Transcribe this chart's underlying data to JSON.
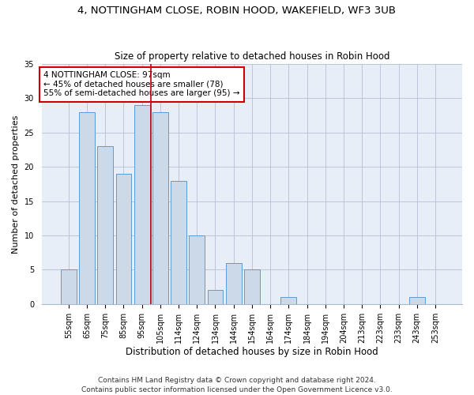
{
  "title": "4, NOTTINGHAM CLOSE, ROBIN HOOD, WAKEFIELD, WF3 3UB",
  "subtitle": "Size of property relative to detached houses in Robin Hood",
  "xlabel": "Distribution of detached houses by size in Robin Hood",
  "ylabel": "Number of detached properties",
  "categories": [
    "55sqm",
    "65sqm",
    "75sqm",
    "85sqm",
    "95sqm",
    "105sqm",
    "114sqm",
    "124sqm",
    "134sqm",
    "144sqm",
    "154sqm",
    "164sqm",
    "174sqm",
    "184sqm",
    "194sqm",
    "204sqm",
    "213sqm",
    "223sqm",
    "233sqm",
    "243sqm",
    "253sqm"
  ],
  "values": [
    5,
    28,
    23,
    19,
    29,
    28,
    18,
    10,
    2,
    6,
    5,
    0,
    1,
    0,
    0,
    0,
    0,
    0,
    0,
    1,
    0
  ],
  "bar_color": "#ccd9e8",
  "bar_edge_color": "#5b9bd5",
  "vline_x": 4.5,
  "vline_color": "#cc0000",
  "annotation_text": "4 NOTTINGHAM CLOSE: 97sqm\n← 45% of detached houses are smaller (78)\n55% of semi-detached houses are larger (95) →",
  "annotation_box_color": "#cc0000",
  "background_color": "#e8eef8",
  "footer": "Contains HM Land Registry data © Crown copyright and database right 2024.\nContains public sector information licensed under the Open Government Licence v3.0.",
  "ylim": [
    0,
    35
  ],
  "title_fontsize": 9.5,
  "subtitle_fontsize": 8.5,
  "xlabel_fontsize": 8.5,
  "ylabel_fontsize": 8,
  "tick_fontsize": 7,
  "annotation_fontsize": 7.5,
  "footer_fontsize": 6.5,
  "yticks": [
    0,
    5,
    10,
    15,
    20,
    25,
    30,
    35
  ]
}
